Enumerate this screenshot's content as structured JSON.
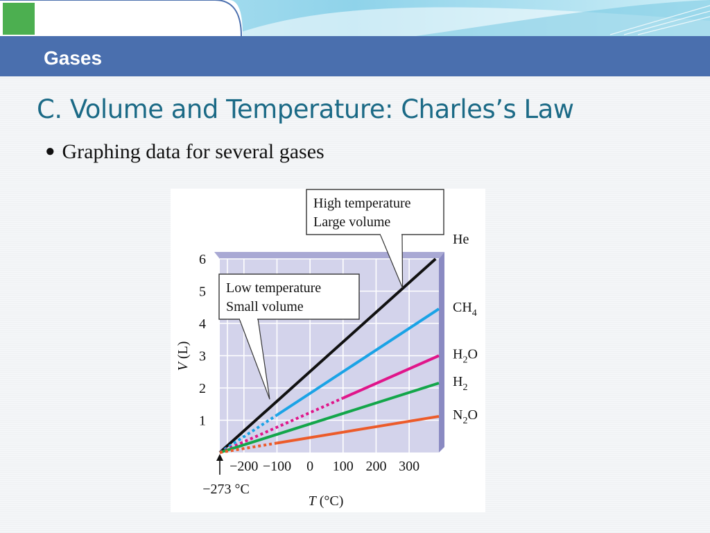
{
  "header": {
    "section_title": "Gases",
    "accent_colors": {
      "bar": "#4a6fae",
      "green_block": "#4caf50",
      "heading": "#1b6a86"
    }
  },
  "slide": {
    "heading": "C. Volume and Temperature: Charles’s Law",
    "bullet": "Graphing data for several gases"
  },
  "chart_data": {
    "type": "line",
    "xlabel_var": "T",
    "xlabel_unit": " (°C)",
    "ylabel_var": "V",
    "ylabel_unit": " (L)",
    "x_ticks": [
      "−200",
      "−100",
      "0",
      "100",
      "200",
      "300"
    ],
    "x_tick_values": [
      -200,
      -100,
      0,
      100,
      200,
      300
    ],
    "y_ticks": [
      "1",
      "2",
      "3",
      "4",
      "5",
      "6"
    ],
    "y_tick_values": [
      1,
      2,
      3,
      4,
      5,
      6
    ],
    "xlim": [
      -273,
      390
    ],
    "ylim": [
      0,
      6
    ],
    "grid": true,
    "absolute_zero_label": "−273 °C",
    "absolute_zero_value": -273,
    "series": [
      {
        "name": "He",
        "label_main": "He",
        "label_sub": "",
        "label_tail": "",
        "color": "#111111",
        "x_start": -273,
        "dotted_until": -273,
        "x_end": 380,
        "y_end": 6.0
      },
      {
        "name": "CH4",
        "label_main": "CH",
        "label_sub": "4",
        "label_tail": "",
        "color": "#1aa3e6",
        "x_start": -273,
        "dotted_until": -100,
        "x_end": 390,
        "y_end": 4.45
      },
      {
        "name": "H2O",
        "label_main": "H",
        "label_sub": "2",
        "label_tail": "O",
        "color": "#e0158a",
        "x_start": -273,
        "dotted_until": 100,
        "x_end": 390,
        "y_end": 3.0
      },
      {
        "name": "H2",
        "label_main": "H",
        "label_sub": "2",
        "label_tail": "",
        "color": "#13a64a",
        "x_start": -273,
        "dotted_until": -273,
        "x_end": 390,
        "y_end": 2.15
      },
      {
        "name": "N2O",
        "label_main": "N",
        "label_sub": "2",
        "label_tail": "O",
        "color": "#ec5b2a",
        "x_start": -273,
        "dotted_until": -100,
        "x_end": 390,
        "y_end": 1.12
      }
    ],
    "annotations": [
      {
        "line1": "High temperature",
        "line2": "Large volume",
        "target_x": 280,
        "target_y": 5.1
      },
      {
        "line1": "Low temperature",
        "line2": "Small volume",
        "target_x": -122,
        "target_y": 1.65
      }
    ]
  }
}
